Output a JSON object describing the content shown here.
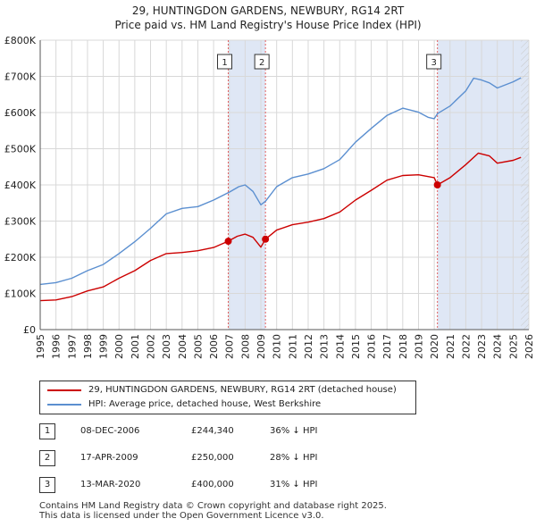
{
  "chart_data": {
    "type": "line",
    "title": "29, HUNTINGDON GARDENS, NEWBURY, RG14 2RT",
    "subtitle": "Price paid vs. HM Land Registry's House Price Index (HPI)",
    "xlim": [
      1995,
      2026
    ],
    "ylim": [
      0,
      800000
    ],
    "x_ticks": [
      "1995",
      "1996",
      "1997",
      "1998",
      "1999",
      "2000",
      "2001",
      "2002",
      "2003",
      "2004",
      "2005",
      "2006",
      "2007",
      "2008",
      "2009",
      "2010",
      "2011",
      "2012",
      "2013",
      "2014",
      "2015",
      "2016",
      "2017",
      "2018",
      "2019",
      "2020",
      "2021",
      "2022",
      "2023",
      "2024",
      "2025",
      "2026"
    ],
    "y_ticks": [
      {
        "value": 0,
        "label": "£0"
      },
      {
        "value": 100000,
        "label": "£100K"
      },
      {
        "value": 200000,
        "label": "£200K"
      },
      {
        "value": 300000,
        "label": "£300K"
      },
      {
        "value": 400000,
        "label": "£400K"
      },
      {
        "value": 500000,
        "label": "£500K"
      },
      {
        "value": 600000,
        "label": "£600K"
      },
      {
        "value": 700000,
        "label": "£700K"
      },
      {
        "value": 800000,
        "label": "£800K"
      }
    ],
    "series": [
      {
        "name": "29, HUNTINGDON GARDENS, NEWBURY, RG14 2RT (detached house)",
        "color": "#cc0000",
        "x": [
          1995,
          1996,
          1997,
          1998,
          1999,
          2000,
          2001,
          2002,
          2003,
          2004,
          2005,
          2006,
          2006.93,
          2007.5,
          2008,
          2008.5,
          2009,
          2009.29,
          2010,
          2011,
          2012,
          2013,
          2014,
          2015,
          2016,
          2017,
          2018,
          2019,
          2020,
          2020.2,
          2021,
          2022,
          2022.8,
          2023.5,
          2024,
          2025,
          2025.5
        ],
        "y": [
          80000,
          82000,
          91000,
          107000,
          118000,
          142000,
          163000,
          191000,
          210000,
          213000,
          218000,
          227000,
          244340,
          258000,
          264000,
          255000,
          228000,
          250000,
          275000,
          290000,
          297000,
          307000,
          325000,
          358000,
          385000,
          413000,
          426000,
          428000,
          420000,
          400000,
          420000,
          456000,
          488000,
          480000,
          460000,
          468000,
          476000
        ]
      },
      {
        "name": "HPI: Average price, detached house, West Berkshire",
        "color": "#5b8fd0",
        "x": [
          1995,
          1996,
          1997,
          1998,
          1999,
          2000,
          2001,
          2002,
          2003,
          2004,
          2005,
          2006,
          2007,
          2007.6,
          2008,
          2008.5,
          2009,
          2009.3,
          2010,
          2011,
          2012,
          2013,
          2014,
          2015,
          2016,
          2017,
          2018,
          2019,
          2019.6,
          2020,
          2020.2,
          2021,
          2022,
          2022.5,
          2023,
          2023.5,
          2024,
          2025,
          2025.5
        ],
        "y": [
          125000,
          130000,
          142000,
          163000,
          180000,
          210000,
          243000,
          280000,
          320000,
          335000,
          340000,
          358000,
          380000,
          395000,
          400000,
          382000,
          345000,
          355000,
          395000,
          420000,
          430000,
          445000,
          470000,
          518000,
          556000,
          592000,
          612000,
          601000,
          587000,
          583000,
          597000,
          618000,
          660000,
          695000,
          690000,
          682000,
          668000,
          685000,
          696000
        ]
      }
    ],
    "sales": [
      {
        "n": "1",
        "x": 2006.93,
        "y": 244340
      },
      {
        "n": "2",
        "x": 2009.29,
        "y": 250000
      },
      {
        "n": "3",
        "x": 2020.2,
        "y": 400000
      }
    ],
    "forecast_from": 2025.5
  },
  "legend": {
    "property": "29, HUNTINGDON GARDENS, NEWBURY, RG14 2RT (detached house)",
    "hpi": "HPI: Average price, detached house, West Berkshire"
  },
  "transactions": [
    {
      "n": "1",
      "date": "08-DEC-2006",
      "price": "£244,340",
      "pct": "36% ↓ HPI"
    },
    {
      "n": "2",
      "date": "17-APR-2009",
      "price": "£250,000",
      "pct": "28% ↓ HPI"
    },
    {
      "n": "3",
      "date": "13-MAR-2020",
      "price": "£400,000",
      "pct": "31% ↓ HPI"
    }
  ],
  "footer": {
    "line1": "Contains HM Land Registry data © Crown copyright and database right 2025.",
    "line2": "This data is licensed under the Open Government Licence v3.0."
  },
  "colors": {
    "property": "#cc0000",
    "hpi": "#5b8fd0",
    "shade": "#dfe7f5",
    "grid": "#d8d8d8",
    "marker_line": "#e06060"
  }
}
